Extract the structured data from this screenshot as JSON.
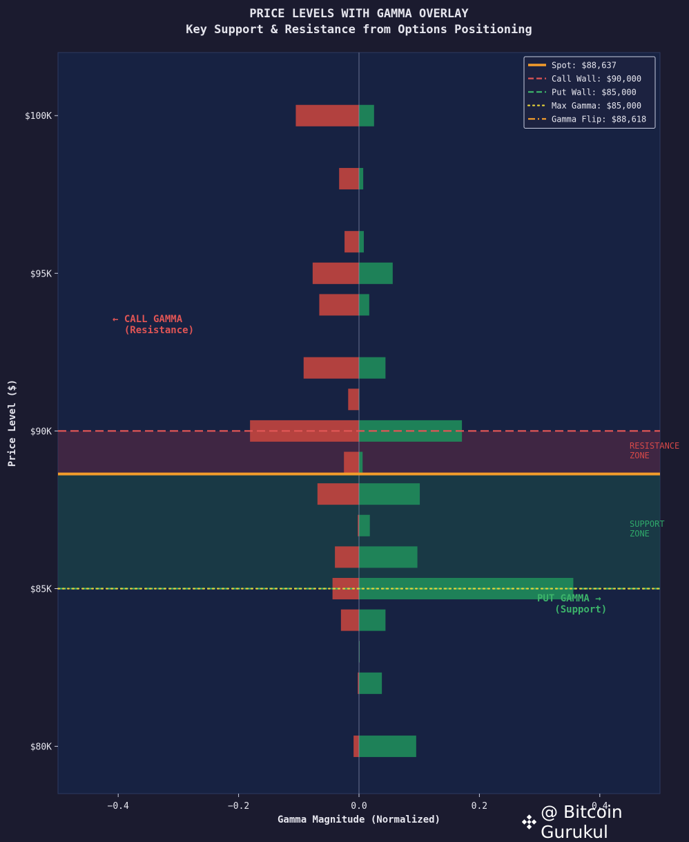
{
  "chart_data": {
    "type": "bar",
    "orientation": "horizontal",
    "title": "PRICE LEVELS WITH GAMMA OVERLAY",
    "subtitle": "Key Support & Resistance from Options Positioning",
    "xlabel": "Gamma Magnitude (Normalized)",
    "ylabel": "Price Level ($)",
    "xlim": [
      -0.5,
      0.5
    ],
    "ylim": [
      78500,
      102000
    ],
    "xticks": [
      -0.4,
      -0.2,
      0.0,
      0.2,
      0.4
    ],
    "xtick_labels": [
      "−0.4",
      "−0.2",
      "0.0",
      "0.2",
      "0.4"
    ],
    "yticks": [
      80000,
      85000,
      90000,
      95000,
      100000
    ],
    "ytick_labels": [
      "$80K",
      "$85K",
      "$90K",
      "$95K",
      "$100K"
    ],
    "levels": [
      100000,
      98000,
      96000,
      95000,
      94000,
      92000,
      91000,
      90000,
      89000,
      88000,
      87000,
      86000,
      85000,
      84000,
      83000,
      82000,
      80000
    ],
    "series": [
      {
        "name": "Call Gamma",
        "color": "#c0443f",
        "values": [
          -0.105,
          -0.033,
          -0.024,
          -0.077,
          -0.066,
          -0.092,
          -0.018,
          -0.181,
          -0.025,
          -0.069,
          -0.002,
          -0.04,
          -0.044,
          -0.03,
          0,
          -0.002,
          -0.009
        ]
      },
      {
        "name": "Put Gamma",
        "color": "#1f8a5a",
        "values": [
          0.025,
          0.007,
          0.008,
          0.056,
          0.017,
          0.044,
          0,
          0.171,
          0.006,
          0.101,
          0.018,
          0.097,
          0.356,
          0.044,
          0.001,
          0.038,
          0.095
        ]
      }
    ],
    "lines": [
      {
        "name": "spot",
        "value": 88637,
        "color": "#f39c2b",
        "style": "solid"
      },
      {
        "name": "call_wall",
        "value": 90000,
        "color": "#e05555",
        "style": "dashed"
      },
      {
        "name": "put_wall",
        "value": 85000,
        "color": "#3cb36a",
        "style": "dashed"
      },
      {
        "name": "max_gamma",
        "value": 85000,
        "color": "#e6d23a",
        "style": "dotted"
      },
      {
        "name": "gamma_flip",
        "value": 88618,
        "color": "#f39c2b",
        "style": "dashdot"
      }
    ],
    "zones": [
      {
        "name": "resistance",
        "from": 88637,
        "to": 90000,
        "color": "#5a2a45"
      },
      {
        "name": "support",
        "from": 85000,
        "to": 88637,
        "color": "#1a4a48"
      }
    ],
    "legend": {
      "placement": "top-right",
      "entries": [
        {
          "label": "Spot: $88,637",
          "color": "#f39c2b",
          "style": "solid"
        },
        {
          "label": "Call Wall: $90,000",
          "color": "#e05555",
          "style": "dashed"
        },
        {
          "label": "Put Wall: $85,000",
          "color": "#3cb36a",
          "style": "dashed"
        },
        {
          "label": "Max Gamma: $85,000",
          "color": "#e6d23a",
          "style": "dotted"
        },
        {
          "label": "Gamma Flip: $88,618",
          "color": "#f39c2b",
          "style": "dashdot"
        }
      ]
    },
    "annotations": {
      "call_gamma": [
        "← CALL GAMMA",
        "  (Resistance)"
      ],
      "put_gamma": [
        "PUT GAMMA →",
        "   (Support)"
      ],
      "resistance_zone": [
        "RESISTANCE",
        "ZONE"
      ],
      "support_zone": [
        "SUPPORT",
        "ZONE"
      ]
    },
    "grid": false
  },
  "watermark": {
    "text": "@ Bitcoin Gurukul",
    "icon": "binance-diamond-icon"
  },
  "colors": {
    "background": "#1b1b2f",
    "plot_bg": "#172242",
    "text": "#e6e6ee"
  }
}
